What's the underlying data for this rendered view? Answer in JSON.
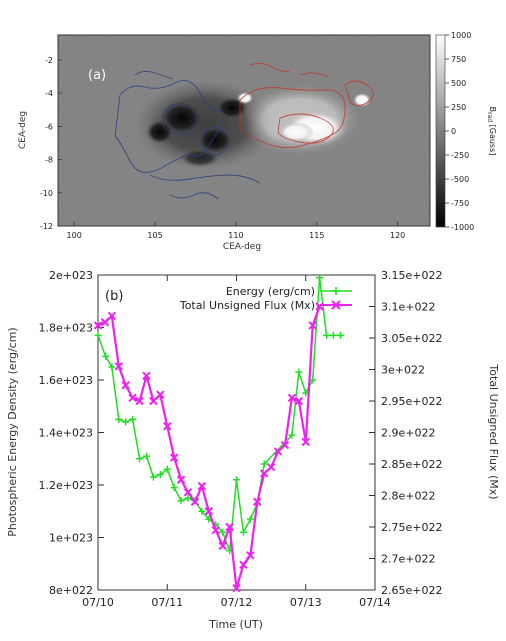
{
  "chart_data": [
    {
      "type": "heatmap",
      "panel_label": "(a)",
      "xlabel": "CEA-deg",
      "ylabel": "CEA-deg",
      "xlim": [
        99,
        122
      ],
      "ylim": [
        -12,
        -0.5
      ],
      "x_ticks": [
        "100",
        "105",
        "110",
        "115",
        "120"
      ],
      "y_ticks": [
        "-2",
        "-4",
        "-6",
        "-8",
        "-10",
        "-12"
      ],
      "colorbar": {
        "label": "B",
        "label_sub": "rad",
        "label_unit": "[Gauss]",
        "range": [
          -1000,
          1000
        ],
        "ticks": [
          "1000",
          "750",
          "500",
          "250",
          "0",
          "-250",
          "-500",
          "-750",
          "-1000"
        ],
        "colors": {
          "min": "#000000",
          "mid": "#808080",
          "max": "#ffffff"
        }
      },
      "contour_colors": {
        "positive": "#c0392b",
        "negative": "#2c3e80"
      }
    },
    {
      "type": "line",
      "panel_label": "(b)",
      "xlabel": "Time (UT)",
      "ylabel": "Photospheric Energy Density (erg/cm)",
      "y2label": "Total Unsigned Flux (Mx)",
      "x_ticks": [
        "07/10",
        "07/11",
        "07/12",
        "07/13",
        "07/14"
      ],
      "xlim": [
        0,
        4
      ],
      "ylim": [
        8e+22,
        2e+23
      ],
      "y2lim": [
        2.65e+22,
        3.15e+22
      ],
      "y_ticks": [
        "8e+022",
        "1e+023",
        "1.2e+023",
        "1.4e+023",
        "1.6e+023",
        "1.8e+023",
        "2e+023"
      ],
      "y2_ticks": [
        "2.65e+022",
        "2.7e+022",
        "2.75e+022",
        "2.8e+022",
        "2.85e+022",
        "2.9e+022",
        "2.95e+022",
        "3e+022",
        "3.05e+022",
        "3.1e+022",
        "3.15e+022"
      ],
      "legend_position": "top",
      "series": [
        {
          "name": "Energy (erg/cm)",
          "axis": "left",
          "color": "#22dd22",
          "marker": "plus",
          "x": [
            0.0,
            0.11,
            0.2,
            0.3,
            0.4,
            0.5,
            0.6,
            0.7,
            0.8,
            0.9,
            1.0,
            1.1,
            1.2,
            1.3,
            1.4,
            1.5,
            1.6,
            1.7,
            1.8,
            1.9,
            2.0,
            2.1,
            2.2,
            2.3,
            2.4,
            2.8,
            2.9,
            3.0,
            3.1,
            3.2,
            3.3,
            3.4,
            3.5
          ],
          "y": [
            1.77e+23,
            1.69e+23,
            1.65e+23,
            1.45e+23,
            1.44e+23,
            1.45e+23,
            1.3e+23,
            1.31e+23,
            1.23e+23,
            1.24e+23,
            1.26e+23,
            1.19e+23,
            1.14e+23,
            1.15e+23,
            1.14e+23,
            1.1e+23,
            1.07e+23,
            1.05e+23,
            1.02e+23,
            9.5e+22,
            1.22e+23,
            1.02e+23,
            1.07e+23,
            1.13e+23,
            1.28e+23,
            1.39e+23,
            1.63e+23,
            1.55e+23,
            1.6e+23,
            1.99e+23,
            1.77e+23,
            1.77e+23,
            1.77e+23
          ]
        },
        {
          "name": "Total Unsigned Flux (Mx)",
          "axis": "right",
          "color": "#ee22ee",
          "marker": "cross",
          "x": [
            0.0,
            0.1,
            0.2,
            0.3,
            0.4,
            0.5,
            0.6,
            0.7,
            0.8,
            0.9,
            1.0,
            1.1,
            1.2,
            1.3,
            1.4,
            1.5,
            1.6,
            1.7,
            1.8,
            1.9,
            2.0,
            2.1,
            2.2,
            2.3,
            2.4,
            2.5,
            2.6,
            2.7,
            2.8,
            2.9,
            3.0,
            3.1,
            3.2
          ],
          "y": [
            3.07e+22,
            3.075e+22,
            3.085e+22,
            3.005e+22,
            2.975e+22,
            2.955e+22,
            2.95e+22,
            2.99e+22,
            2.95e+22,
            2.96e+22,
            2.91e+22,
            2.86e+22,
            2.825e+22,
            2.805e+22,
            2.79e+22,
            2.815e+22,
            2.775e+22,
            2.745e+22,
            2.72e+22,
            2.75e+22,
            2.653e+22,
            2.69e+22,
            2.705e+22,
            2.79e+22,
            2.835e+22,
            2.845e+22,
            2.87e+22,
            2.88e+22,
            2.955e+22,
            2.95e+22,
            2.885e+22,
            3.07e+22,
            3.1e+22
          ]
        }
      ]
    }
  ]
}
